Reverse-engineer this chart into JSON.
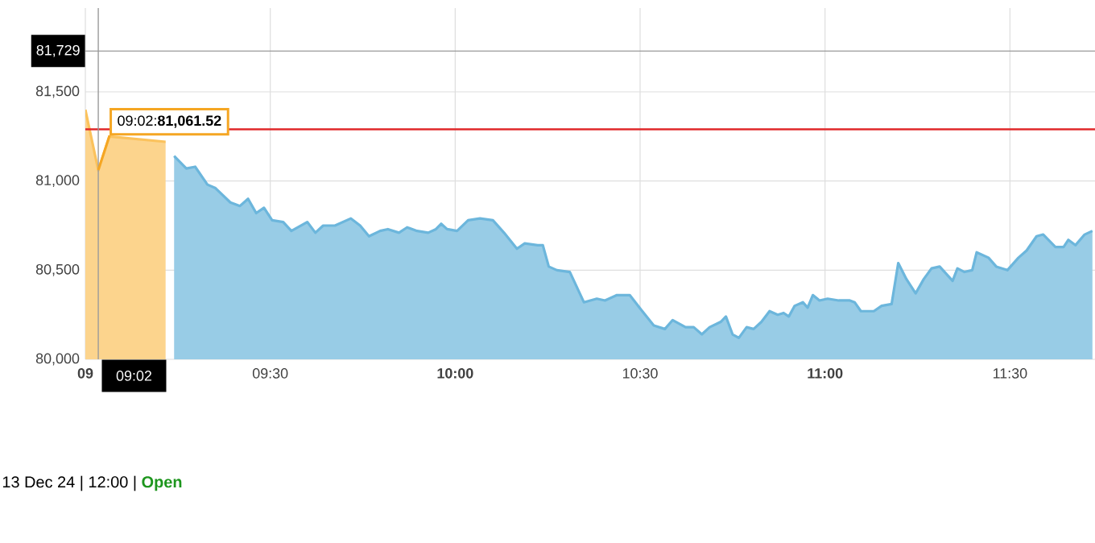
{
  "chart_data": {
    "type": "area",
    "xlim": [
      9,
      11.73
    ],
    "ylim": [
      80000,
      81970
    ],
    "xticks": [
      {
        "value": 9,
        "label": "09"
      },
      {
        "value": 9.5,
        "label": "09:30"
      },
      {
        "value": 10,
        "label": "10:00"
      },
      {
        "value": 10.5,
        "label": "10:30"
      },
      {
        "value": 11,
        "label": "11:00"
      },
      {
        "value": 11.5,
        "label": "11:30"
      }
    ],
    "yticks": [
      {
        "value": 80000,
        "label": "80,000"
      },
      {
        "value": 80500,
        "label": "80,500"
      },
      {
        "value": 81000,
        "label": "81,000"
      },
      {
        "value": 81500,
        "label": "81,500"
      }
    ],
    "grid": true,
    "series": [
      {
        "color": "#fbc25c",
        "x": [
          9,
          9.035,
          9.065,
          9.217
        ],
        "values": [
          81400,
          81060,
          81250,
          81220
        ]
      },
      {
        "color": "#6cb6dc",
        "x": [
          9.24,
          9.273,
          9.297,
          9.33,
          9.352,
          9.392,
          9.418,
          9.44,
          9.462,
          9.483,
          9.505,
          9.535,
          9.557,
          9.6,
          9.622,
          9.643,
          9.675,
          9.718,
          9.743,
          9.767,
          9.797,
          9.818,
          9.848,
          9.87,
          9.897,
          9.927,
          9.948,
          9.962,
          9.978,
          10.005,
          10.035,
          10.067,
          10.102,
          10.132,
          10.167,
          10.188,
          10.223,
          10.237,
          10.253,
          10.275,
          10.31,
          10.348,
          10.383,
          10.405,
          10.437,
          10.472,
          10.502,
          10.537,
          10.567,
          10.588,
          10.623,
          10.645,
          10.667,
          10.688,
          10.718,
          10.732,
          10.75,
          10.767,
          10.788,
          10.807,
          10.828,
          10.85,
          10.872,
          10.888,
          10.902,
          10.918,
          10.94,
          10.953,
          10.967,
          10.985,
          11.007,
          11.037,
          11.067,
          11.08,
          11.097,
          11.132,
          11.153,
          11.18,
          11.198,
          11.22,
          11.245,
          11.267,
          11.288,
          11.31,
          11.345,
          11.358,
          11.377,
          11.398,
          11.41,
          11.442,
          11.463,
          11.493,
          11.523,
          11.545,
          11.572,
          11.59,
          11.623,
          11.645,
          11.658,
          11.677,
          11.702,
          11.723
        ],
        "values": [
          81140,
          81070,
          81080,
          80980,
          80960,
          80880,
          80860,
          80900,
          80820,
          80850,
          80780,
          80770,
          80720,
          80770,
          80710,
          80750,
          80750,
          80790,
          80750,
          80690,
          80720,
          80730,
          80710,
          80740,
          80720,
          80710,
          80730,
          80760,
          80730,
          80720,
          80780,
          80790,
          80780,
          80710,
          80620,
          80650,
          80640,
          80640,
          80520,
          80500,
          80490,
          80320,
          80340,
          80330,
          80360,
          80360,
          80280,
          80190,
          80170,
          80220,
          80180,
          80180,
          80140,
          80180,
          80210,
          80240,
          80140,
          80120,
          80180,
          80170,
          80210,
          80270,
          80250,
          80260,
          80240,
          80300,
          80320,
          80290,
          80360,
          80330,
          80340,
          80330,
          80330,
          80320,
          80270,
          80270,
          80300,
          80310,
          80540,
          80450,
          80370,
          80450,
          80510,
          80520,
          80440,
          80510,
          80490,
          80500,
          80600,
          80570,
          80520,
          80500,
          80570,
          80610,
          80690,
          80700,
          80630,
          80630,
          80670,
          80640,
          80700,
          80720
        ]
      }
    ],
    "ref_lines": [
      {
        "axis": "y",
        "value": 81290,
        "color": "#e0282a"
      },
      {
        "axis": "y",
        "value": 81729,
        "label": "81,729",
        "color": "#9a9a9a"
      },
      {
        "axis": "x",
        "value": 9.035,
        "label": "09:02",
        "color": "#9a9a9a"
      }
    ],
    "annotations": [
      {
        "text": "09:02:**81,061.52**",
        "x": 9.035,
        "y": 81061.52
      },
      "13 Dec 24 | 12:00 |",
      "Open"
    ]
  }
}
